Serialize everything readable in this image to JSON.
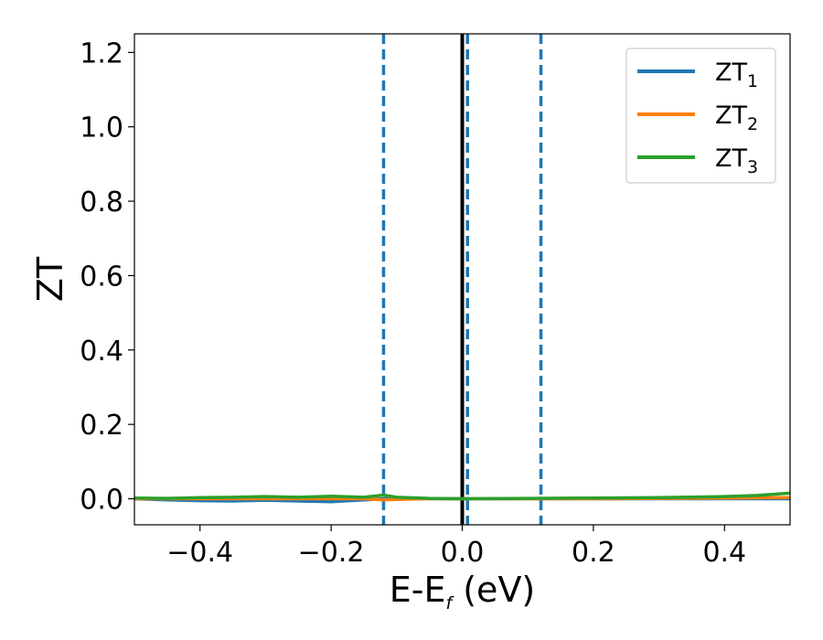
{
  "chart_data": {
    "type": "line",
    "xlabel": "E-E",
    "xlabel_sub": "f",
    "xlabel_unit": " (eV)",
    "ylabel": "ZT",
    "xlim": [
      -0.5,
      0.5
    ],
    "ylim": [
      -0.07,
      1.25
    ],
    "xticks": [
      -0.4,
      -0.2,
      0.0,
      0.2,
      0.4
    ],
    "xtick_labels": [
      "−0.4",
      "−0.2",
      "0.0",
      "0.2",
      "0.4"
    ],
    "yticks": [
      0.0,
      0.2,
      0.4,
      0.6,
      0.8,
      1.0,
      1.2
    ],
    "ytick_labels": [
      "0.0",
      "0.2",
      "0.4",
      "0.6",
      "0.8",
      "1.0",
      "1.2"
    ],
    "grid": false,
    "legend_position": "top-right",
    "vlines": [
      {
        "x": -0.12,
        "style": "dashed",
        "color": "#1f77b4"
      },
      {
        "x": 0.008,
        "style": "dashed",
        "color": "#1f77b4"
      },
      {
        "x": 0.12,
        "style": "dashed",
        "color": "#1f77b4"
      },
      {
        "x": 0.0,
        "style": "solid",
        "color": "#000000"
      }
    ],
    "series": [
      {
        "name": "ZT",
        "name_sub": "1",
        "color": "#1f77b4",
        "x": [
          -0.5,
          -0.45,
          -0.4,
          -0.35,
          -0.3,
          -0.25,
          -0.2,
          -0.15,
          -0.12,
          -0.1,
          -0.05,
          0.0,
          0.1,
          0.2,
          0.3,
          0.4,
          0.5
        ],
        "y": [
          0.0,
          -0.003,
          -0.005,
          -0.006,
          -0.004,
          -0.006,
          -0.008,
          -0.003,
          0.0,
          0.002,
          0.0,
          0.0,
          0.0,
          0.0,
          0.0,
          0.0,
          0.0
        ]
      },
      {
        "name": "ZT",
        "name_sub": "2",
        "color": "#ff7f0e",
        "x": [
          -0.5,
          -0.45,
          -0.4,
          -0.35,
          -0.3,
          -0.25,
          -0.2,
          -0.15,
          -0.12,
          -0.1,
          -0.05,
          0.0,
          0.1,
          0.2,
          0.3,
          0.4,
          0.5
        ],
        "y": [
          0.0,
          0.0,
          0.0,
          0.0,
          0.0,
          0.0,
          0.0,
          0.0,
          -0.003,
          -0.002,
          0.0,
          0.0,
          0.0,
          0.0,
          0.001,
          0.002,
          0.003
        ]
      },
      {
        "name": "ZT",
        "name_sub": "3",
        "color": "#2ca02c",
        "x": [
          -0.5,
          -0.45,
          -0.4,
          -0.35,
          -0.3,
          -0.25,
          -0.2,
          -0.15,
          -0.12,
          -0.1,
          -0.05,
          0.0,
          0.1,
          0.2,
          0.3,
          0.4,
          0.45,
          0.5
        ],
        "y": [
          0.002,
          0.001,
          0.003,
          0.004,
          0.006,
          0.004,
          0.007,
          0.004,
          0.01,
          0.004,
          0.001,
          0.0,
          0.001,
          0.002,
          0.003,
          0.006,
          0.009,
          0.015
        ]
      }
    ]
  }
}
